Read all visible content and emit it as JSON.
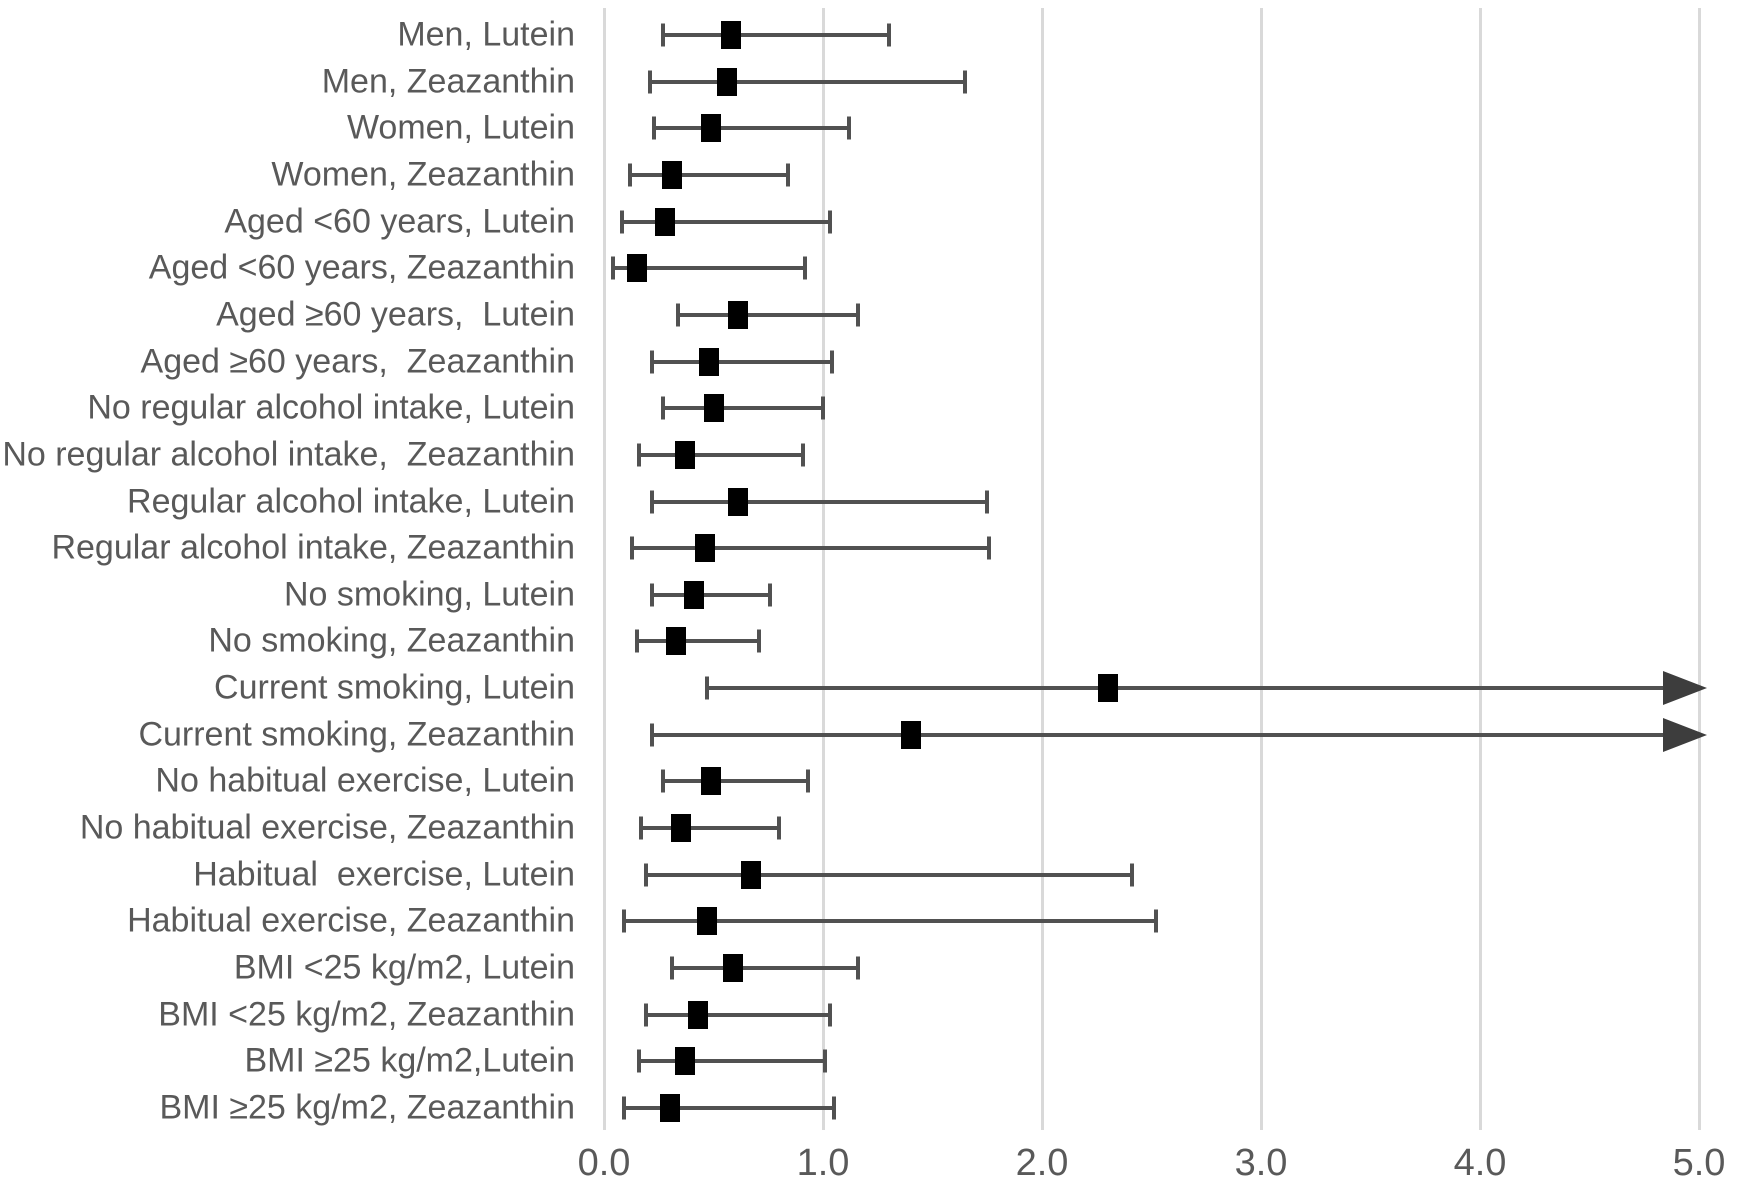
{
  "chart_data": {
    "type": "forest",
    "title": "",
    "xlabel": "",
    "ylabel": "",
    "x_axis": {
      "range": [
        0.0,
        5.0
      ],
      "tick_values": [
        0.0,
        1.0,
        2.0,
        3.0,
        4.0,
        5.0
      ],
      "tick_labels": [
        "0.0",
        "1.0",
        "2.0",
        "3.0",
        "4.0",
        "5.0"
      ],
      "grid": true
    },
    "legend": null,
    "rows": [
      {
        "label": "Men, Lutein",
        "value": 0.58,
        "lo": 0.27,
        "hi": 1.3,
        "arrow": false
      },
      {
        "label": "Men, Zeazanthin",
        "value": 0.56,
        "lo": 0.21,
        "hi": 1.65,
        "arrow": false
      },
      {
        "label": "Women, Lutein",
        "value": 0.49,
        "lo": 0.23,
        "hi": 1.12,
        "arrow": false
      },
      {
        "label": "Women, Zeazanthin",
        "value": 0.31,
        "lo": 0.12,
        "hi": 0.84,
        "arrow": false
      },
      {
        "label": "Aged <60 years, Lutein",
        "value": 0.28,
        "lo": 0.08,
        "hi": 1.03,
        "arrow": false
      },
      {
        "label": "Aged <60 years, Zeazanthin",
        "value": 0.15,
        "lo": 0.04,
        "hi": 0.92,
        "arrow": false
      },
      {
        "label": "Aged ≥60 years,  Lutein",
        "value": 0.61,
        "lo": 0.34,
        "hi": 1.16,
        "arrow": false
      },
      {
        "label": "Aged ≥60 years,  Zeazanthin",
        "value": 0.48,
        "lo": 0.22,
        "hi": 1.04,
        "arrow": false
      },
      {
        "label": "No regular alcohol intake, Lutein",
        "value": 0.5,
        "lo": 0.27,
        "hi": 1.0,
        "arrow": false
      },
      {
        "label": "No regular alcohol intake,  Zeazanthin",
        "value": 0.37,
        "lo": 0.16,
        "hi": 0.91,
        "arrow": false
      },
      {
        "label": "Regular alcohol intake, Lutein",
        "value": 0.61,
        "lo": 0.22,
        "hi": 1.75,
        "arrow": false
      },
      {
        "label": "Regular alcohol intake, Zeazanthin",
        "value": 0.46,
        "lo": 0.13,
        "hi": 1.76,
        "arrow": false
      },
      {
        "label": "No smoking, Lutein",
        "value": 0.41,
        "lo": 0.22,
        "hi": 0.76,
        "arrow": false
      },
      {
        "label": "No smoking, Zeazanthin",
        "value": 0.33,
        "lo": 0.15,
        "hi": 0.71,
        "arrow": false
      },
      {
        "label": "Current smoking, Lutein",
        "value": 2.3,
        "lo": 0.47,
        "hi": 5.0,
        "arrow": true
      },
      {
        "label": "Current smoking, Zeazanthin",
        "value": 1.4,
        "lo": 0.22,
        "hi": 5.0,
        "arrow": true
      },
      {
        "label": "No habitual exercise, Lutein",
        "value": 0.49,
        "lo": 0.27,
        "hi": 0.93,
        "arrow": false
      },
      {
        "label": "No habitual exercise, Zeazanthin",
        "value": 0.35,
        "lo": 0.17,
        "hi": 0.8,
        "arrow": false
      },
      {
        "label": "Habitual  exercise, Lutein",
        "value": 0.67,
        "lo": 0.19,
        "hi": 2.41,
        "arrow": false
      },
      {
        "label": "Habitual exercise, Zeazanthin",
        "value": 0.47,
        "lo": 0.09,
        "hi": 2.52,
        "arrow": false
      },
      {
        "label": "BMI <25 kg/m2, Lutein",
        "value": 0.59,
        "lo": 0.31,
        "hi": 1.16,
        "arrow": false
      },
      {
        "label": "BMI <25 kg/m2, Zeazanthin",
        "value": 0.43,
        "lo": 0.19,
        "hi": 1.03,
        "arrow": false
      },
      {
        "label": "BMI ≥25 kg/m2,Lutein",
        "value": 0.37,
        "lo": 0.16,
        "hi": 1.01,
        "arrow": false
      },
      {
        "label": "BMI ≥25 kg/m2, Zeazanthin",
        "value": 0.3,
        "lo": 0.09,
        "hi": 1.05,
        "arrow": false
      }
    ],
    "colors": {
      "marker": "#000000",
      "ci_line": "#515151",
      "gridline": "#d9d9d9",
      "text": "#595959",
      "background": "#ffffff"
    }
  }
}
